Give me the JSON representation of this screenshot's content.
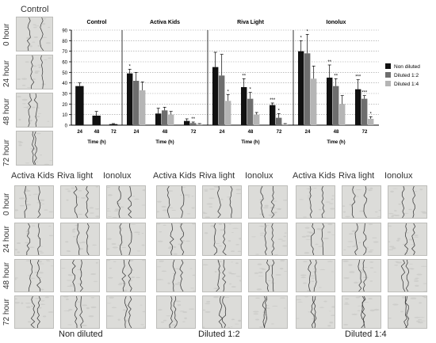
{
  "top_left": {
    "title": "Control",
    "rows": [
      "0 hour",
      "24 hour",
      "48 hour",
      "72 hour"
    ]
  },
  "chart_data": {
    "type": "bar",
    "y_ticks": [
      0,
      10,
      20,
      30,
      40,
      50,
      60,
      70,
      80,
      90
    ],
    "ylim": [
      0,
      90
    ],
    "xlabel": "Time (h)",
    "categories": [
      "24",
      "48",
      "72"
    ],
    "legend": [
      "Non diluted",
      "Diluted 1:2",
      "Diluted 1:4"
    ],
    "legend_position": "right",
    "colors": [
      "#111111",
      "#6e6e6e",
      "#b5b5b5"
    ],
    "panels": [
      {
        "title": "Control",
        "series": [
          {
            "values": [
              37,
              9,
              1
            ],
            "errors": [
              3,
              4,
              0.5
            ]
          }
        ]
      },
      {
        "title": "Activa Kids",
        "series": [
          {
            "values": [
              49,
              11,
              4
            ],
            "errors": [
              4,
              5,
              2
            ],
            "stars": [
              "*",
              "",
              ""
            ]
          },
          {
            "values": [
              42,
              14,
              2
            ],
            "errors": [
              8,
              3,
              1
            ],
            "stars": [
              "",
              "",
              "**"
            ]
          },
          {
            "values": [
              33,
              10,
              1
            ],
            "errors": [
              8,
              3,
              0.5
            ],
            "stars": [
              "",
              "",
              ""
            ]
          }
        ]
      },
      {
        "title": "Riva Light",
        "series": [
          {
            "values": [
              55,
              36,
              19
            ],
            "errors": [
              14,
              8,
              2
            ],
            "stars": [
              "",
              "**",
              "***"
            ]
          },
          {
            "values": [
              47,
              25,
              7
            ],
            "errors": [
              20,
              6,
              4
            ],
            "stars": [
              "",
              "*",
              "*"
            ]
          },
          {
            "values": [
              23,
              10,
              1
            ],
            "errors": [
              6,
              2,
              0.5
            ],
            "stars": [
              "*",
              "",
              ""
            ]
          }
        ]
      },
      {
        "title": "Ionolux",
        "series": [
          {
            "values": [
              70,
              45,
              34
            ],
            "errors": [
              10,
              12,
              9
            ],
            "stars": [
              "*",
              "**",
              "***"
            ]
          },
          {
            "values": [
              68,
              37,
              25
            ],
            "errors": [
              18,
              7,
              3
            ],
            "stars": [
              "*",
              "**",
              "***"
            ]
          },
          {
            "values": [
              44,
              20,
              6
            ],
            "errors": [
              12,
              8,
              2
            ],
            "stars": [
              "",
              "",
              "*"
            ]
          }
        ]
      }
    ]
  },
  "bottom": {
    "groups": [
      {
        "caption": "Non diluted",
        "cols": [
          "Activa Kids",
          "Riva light",
          "Ionolux"
        ]
      },
      {
        "caption": "Diluted 1:2",
        "cols": [
          "Activa Kids",
          "Riva light",
          "Ionolux"
        ]
      },
      {
        "caption": "Diluted 1:4",
        "cols": [
          "Activa Kids",
          "Riva light",
          "Ionolux"
        ]
      }
    ],
    "rows": [
      "0 hour",
      "24 hour",
      "48 hour",
      "72 hour"
    ]
  }
}
